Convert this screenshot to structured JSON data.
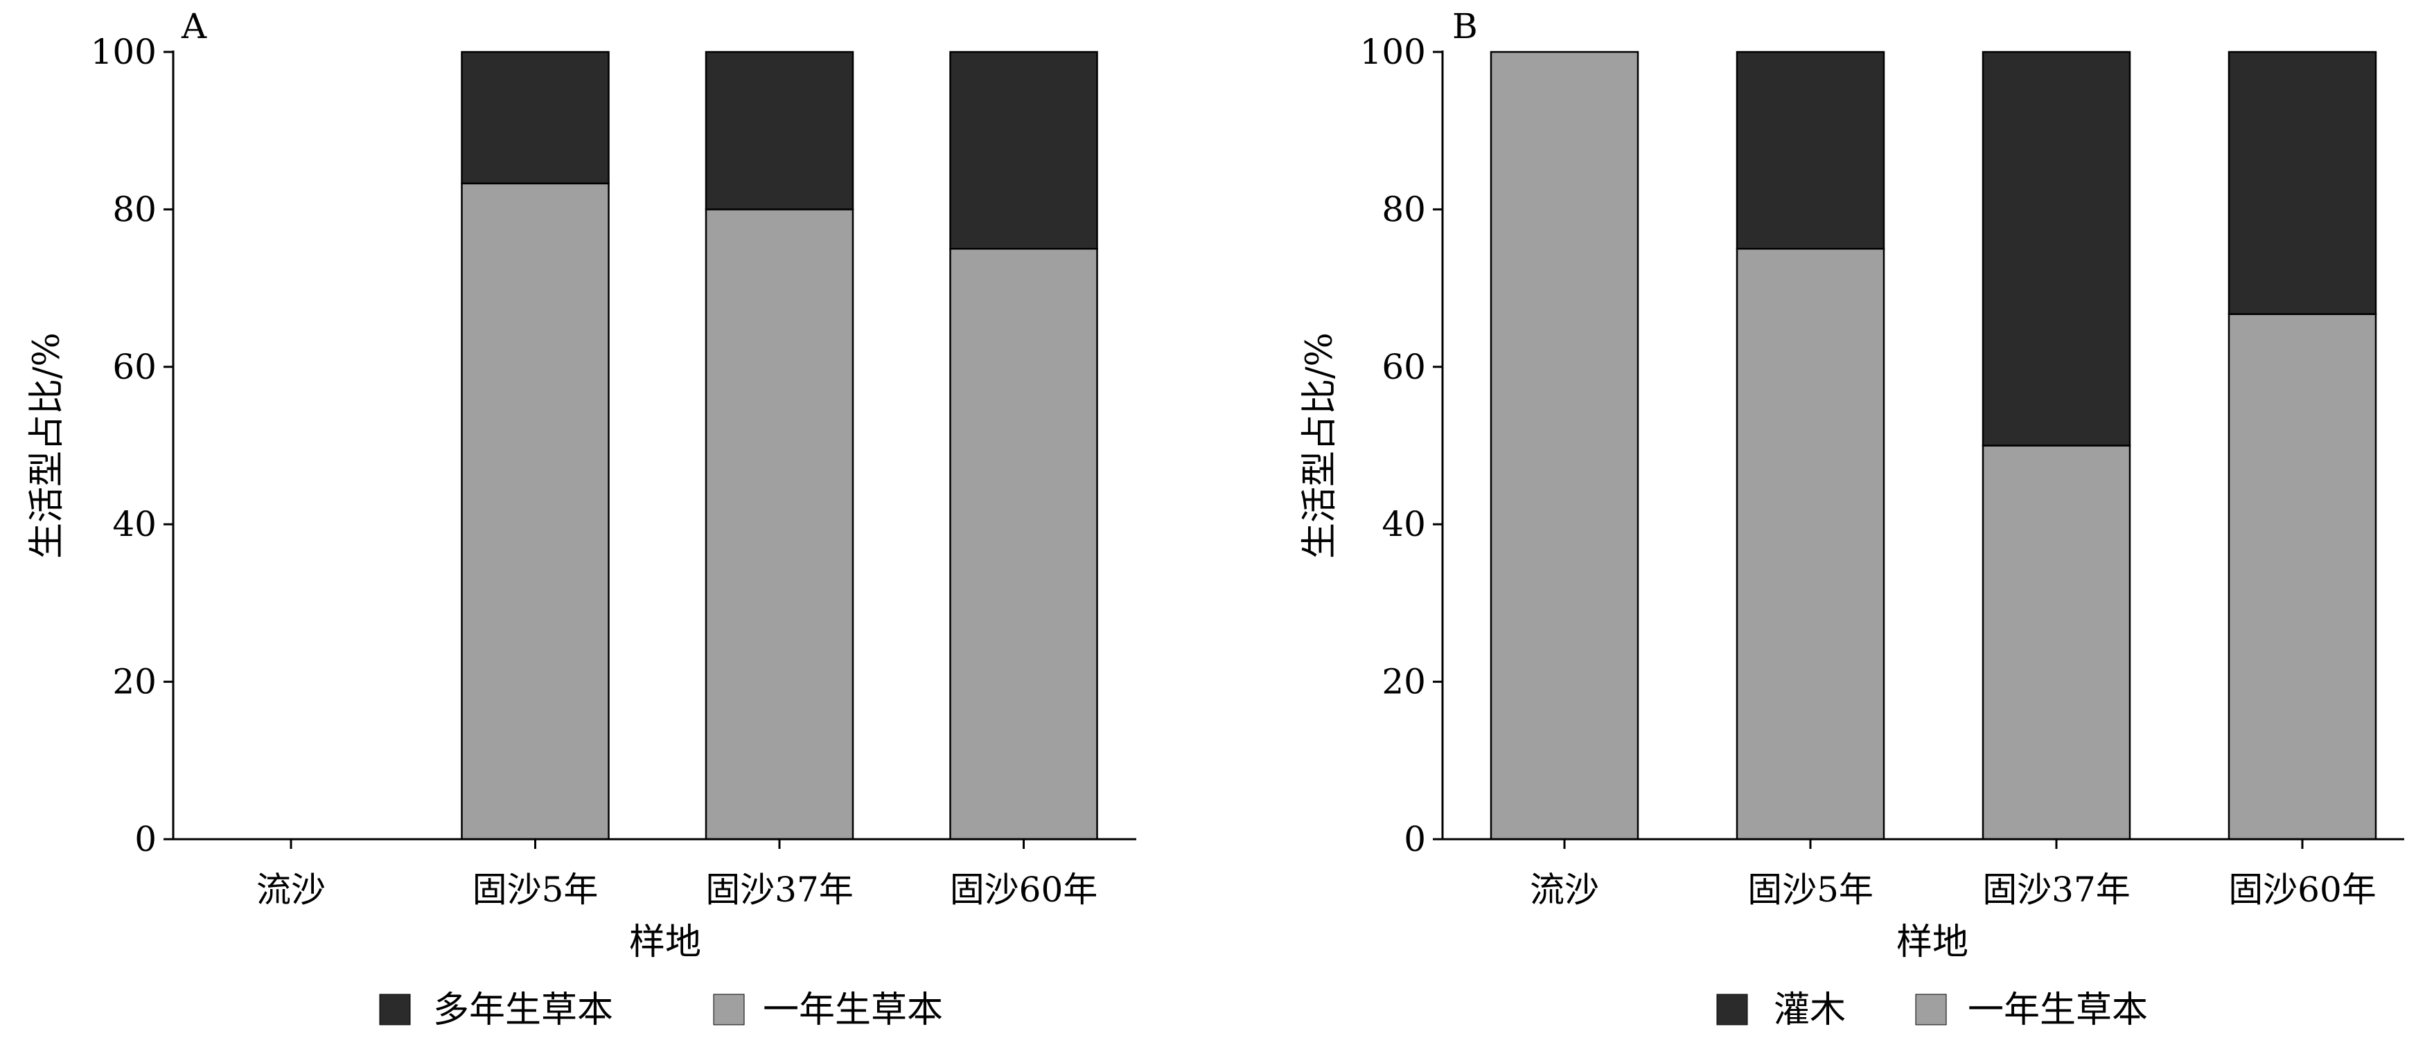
{
  "colors": {
    "annual_herb": "#a0a0a0",
    "perennial_herb": "#2b2b2b",
    "shrub": "#2b2b2b",
    "axis": "#000000"
  },
  "chart_data": [
    {
      "type": "bar",
      "stacked": true,
      "panel_label": "A",
      "xlabel": "样地",
      "ylabel": "生活型占比/%",
      "ylim": [
        0,
        100
      ],
      "yticks": [
        0,
        20,
        40,
        60,
        80,
        100
      ],
      "categories": [
        "流沙",
        "固沙5年",
        "固沙37年",
        "固沙60年"
      ],
      "series": [
        {
          "name": "一年生草本",
          "color": "#a0a0a0",
          "values": [
            0,
            83.3,
            80,
            75
          ]
        },
        {
          "name": "多年生草本",
          "color": "#2b2b2b",
          "values": [
            0,
            16.7,
            20,
            25
          ]
        }
      ],
      "legend": [
        {
          "name": "多年生草本",
          "color": "#2b2b2b"
        },
        {
          "name": "一年生草本",
          "color": "#a0a0a0"
        }
      ],
      "legend_position": "bottom",
      "grid": false
    },
    {
      "type": "bar",
      "stacked": true,
      "panel_label": "B",
      "xlabel": "样地",
      "ylabel": "生活型占比/%",
      "ylim": [
        0,
        100
      ],
      "yticks": [
        0,
        20,
        40,
        60,
        80,
        100
      ],
      "categories": [
        "流沙",
        "固沙5年",
        "固沙37年",
        "固沙60年"
      ],
      "series": [
        {
          "name": "一年生草本",
          "color": "#a0a0a0",
          "values": [
            100,
            75,
            50,
            66.7
          ]
        },
        {
          "name": "灌木",
          "color": "#2b2b2b",
          "values": [
            0,
            25,
            50,
            33.3
          ]
        }
      ],
      "legend": [
        {
          "name": "灌木",
          "color": "#2b2b2b"
        },
        {
          "name": "一年生草本",
          "color": "#a0a0a0"
        }
      ],
      "legend_position": "bottom",
      "grid": false
    }
  ]
}
